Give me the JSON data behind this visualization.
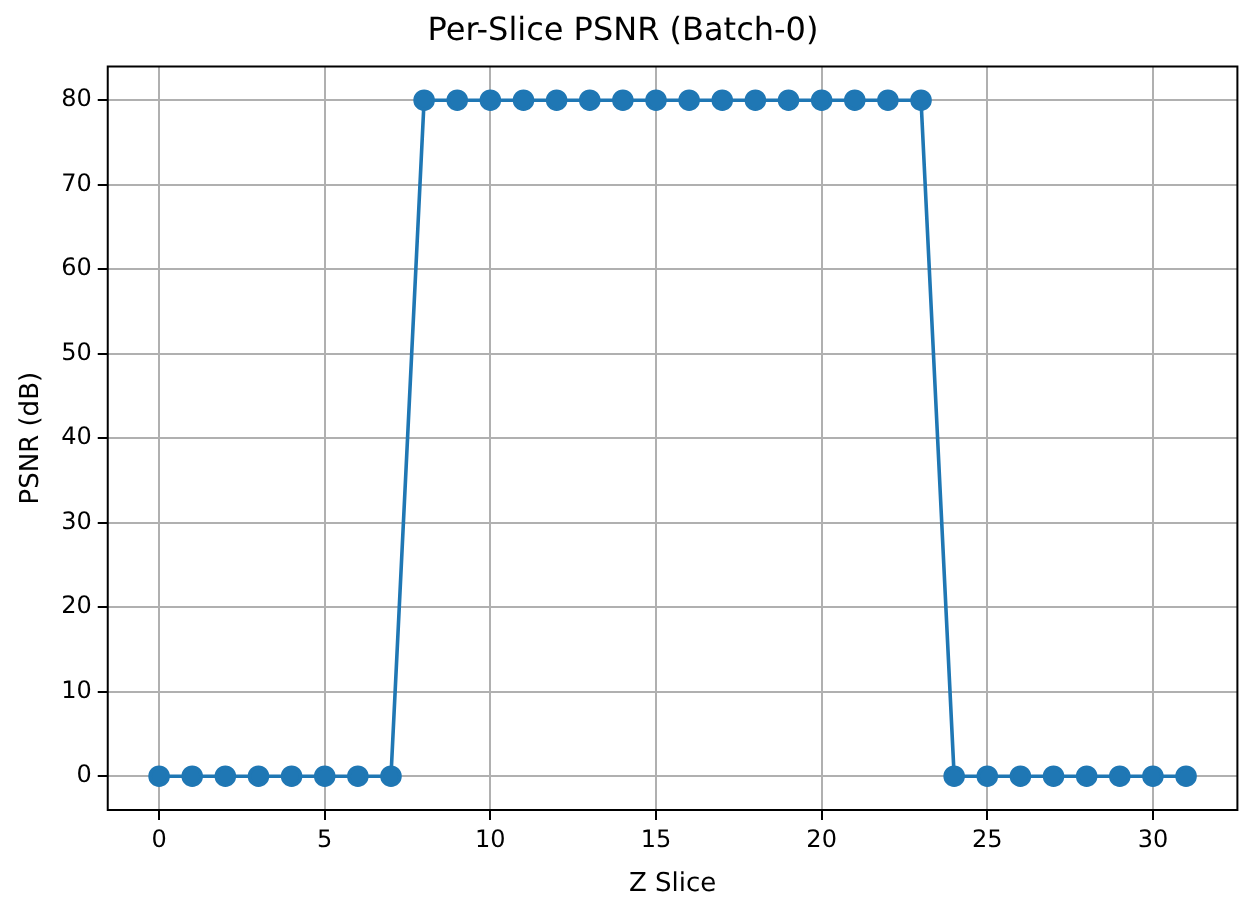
{
  "chart_data": {
    "type": "line",
    "title": "Per-Slice PSNR (Batch-0)",
    "xlabel": "Z Slice",
    "ylabel": "PSNR (dB)",
    "x": [
      0,
      1,
      2,
      3,
      4,
      5,
      6,
      7,
      8,
      9,
      10,
      11,
      12,
      13,
      14,
      15,
      16,
      17,
      18,
      19,
      20,
      21,
      22,
      23,
      24,
      25,
      26,
      27,
      28,
      29,
      30,
      31
    ],
    "series": [
      {
        "color": "#1f77b4",
        "values": [
          0,
          0,
          0,
          0,
          0,
          0,
          0,
          0,
          80,
          80,
          80,
          80,
          80,
          80,
          80,
          80,
          80,
          80,
          80,
          80,
          80,
          80,
          80,
          80,
          0,
          0,
          0,
          0,
          0,
          0,
          0,
          0
        ]
      }
    ],
    "xlim": [
      -1.55,
      32.55
    ],
    "xticks": [
      0,
      5,
      10,
      15,
      20,
      25,
      30
    ],
    "ylim": [
      -4,
      84
    ],
    "yticks": [
      0,
      10,
      20,
      30,
      40,
      50,
      60,
      70,
      80
    ],
    "grid": true,
    "legend": false,
    "marker": "circle",
    "line_style": "solid"
  }
}
